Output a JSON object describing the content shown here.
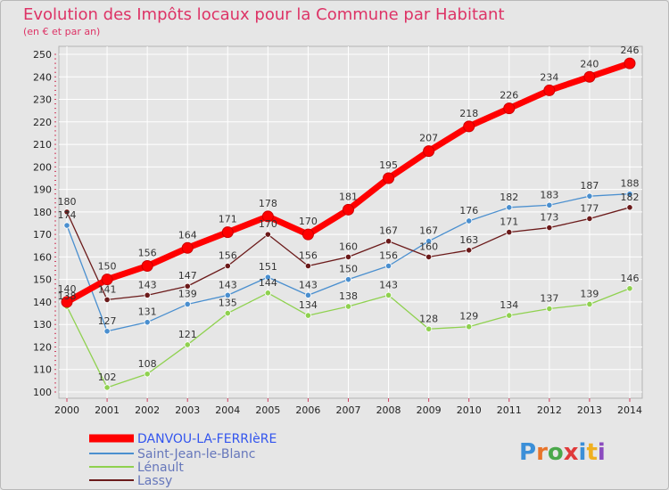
{
  "chart_data": {
    "type": "line",
    "title": "Evolution des Impôts locaux pour la Commune par Habitant",
    "subtitle": "(en € et par an)",
    "x": [
      "2000",
      "2001",
      "2002",
      "2003",
      "2004",
      "2005",
      "2006",
      "2007",
      "2008",
      "2009",
      "2010",
      "2011",
      "2012",
      "2013",
      "2014"
    ],
    "ylim": [
      100,
      250
    ],
    "yticks": [
      100,
      110,
      120,
      130,
      140,
      150,
      160,
      170,
      180,
      190,
      200,
      210,
      220,
      230,
      240,
      250
    ],
    "grid": true,
    "legend_position": "bottom-left",
    "series": [
      {
        "name": "DANVOU-LA-FERRIèRE",
        "color": "#ff0000",
        "values": [
          140,
          150,
          156,
          164,
          171,
          178,
          170,
          181,
          195,
          207,
          218,
          226,
          234,
          240,
          246
        ]
      },
      {
        "name": "Saint-Jean-le-Blanc",
        "color": "#4a8fcf",
        "values": [
          174,
          127,
          131,
          139,
          143,
          151,
          143,
          150,
          156,
          167,
          176,
          182,
          183,
          187,
          188
        ]
      },
      {
        "name": "Lénault",
        "color": "#8fd14f",
        "values": [
          138,
          102,
          108,
          121,
          135,
          144,
          134,
          138,
          143,
          128,
          129,
          134,
          137,
          139,
          146
        ]
      },
      {
        "name": "Lassy",
        "color": "#6b1a1a",
        "values": [
          180,
          141,
          143,
          147,
          156,
          170,
          156,
          160,
          167,
          160,
          163,
          171,
          173,
          177,
          182
        ]
      }
    ],
    "logo_text": "Proxiti"
  }
}
